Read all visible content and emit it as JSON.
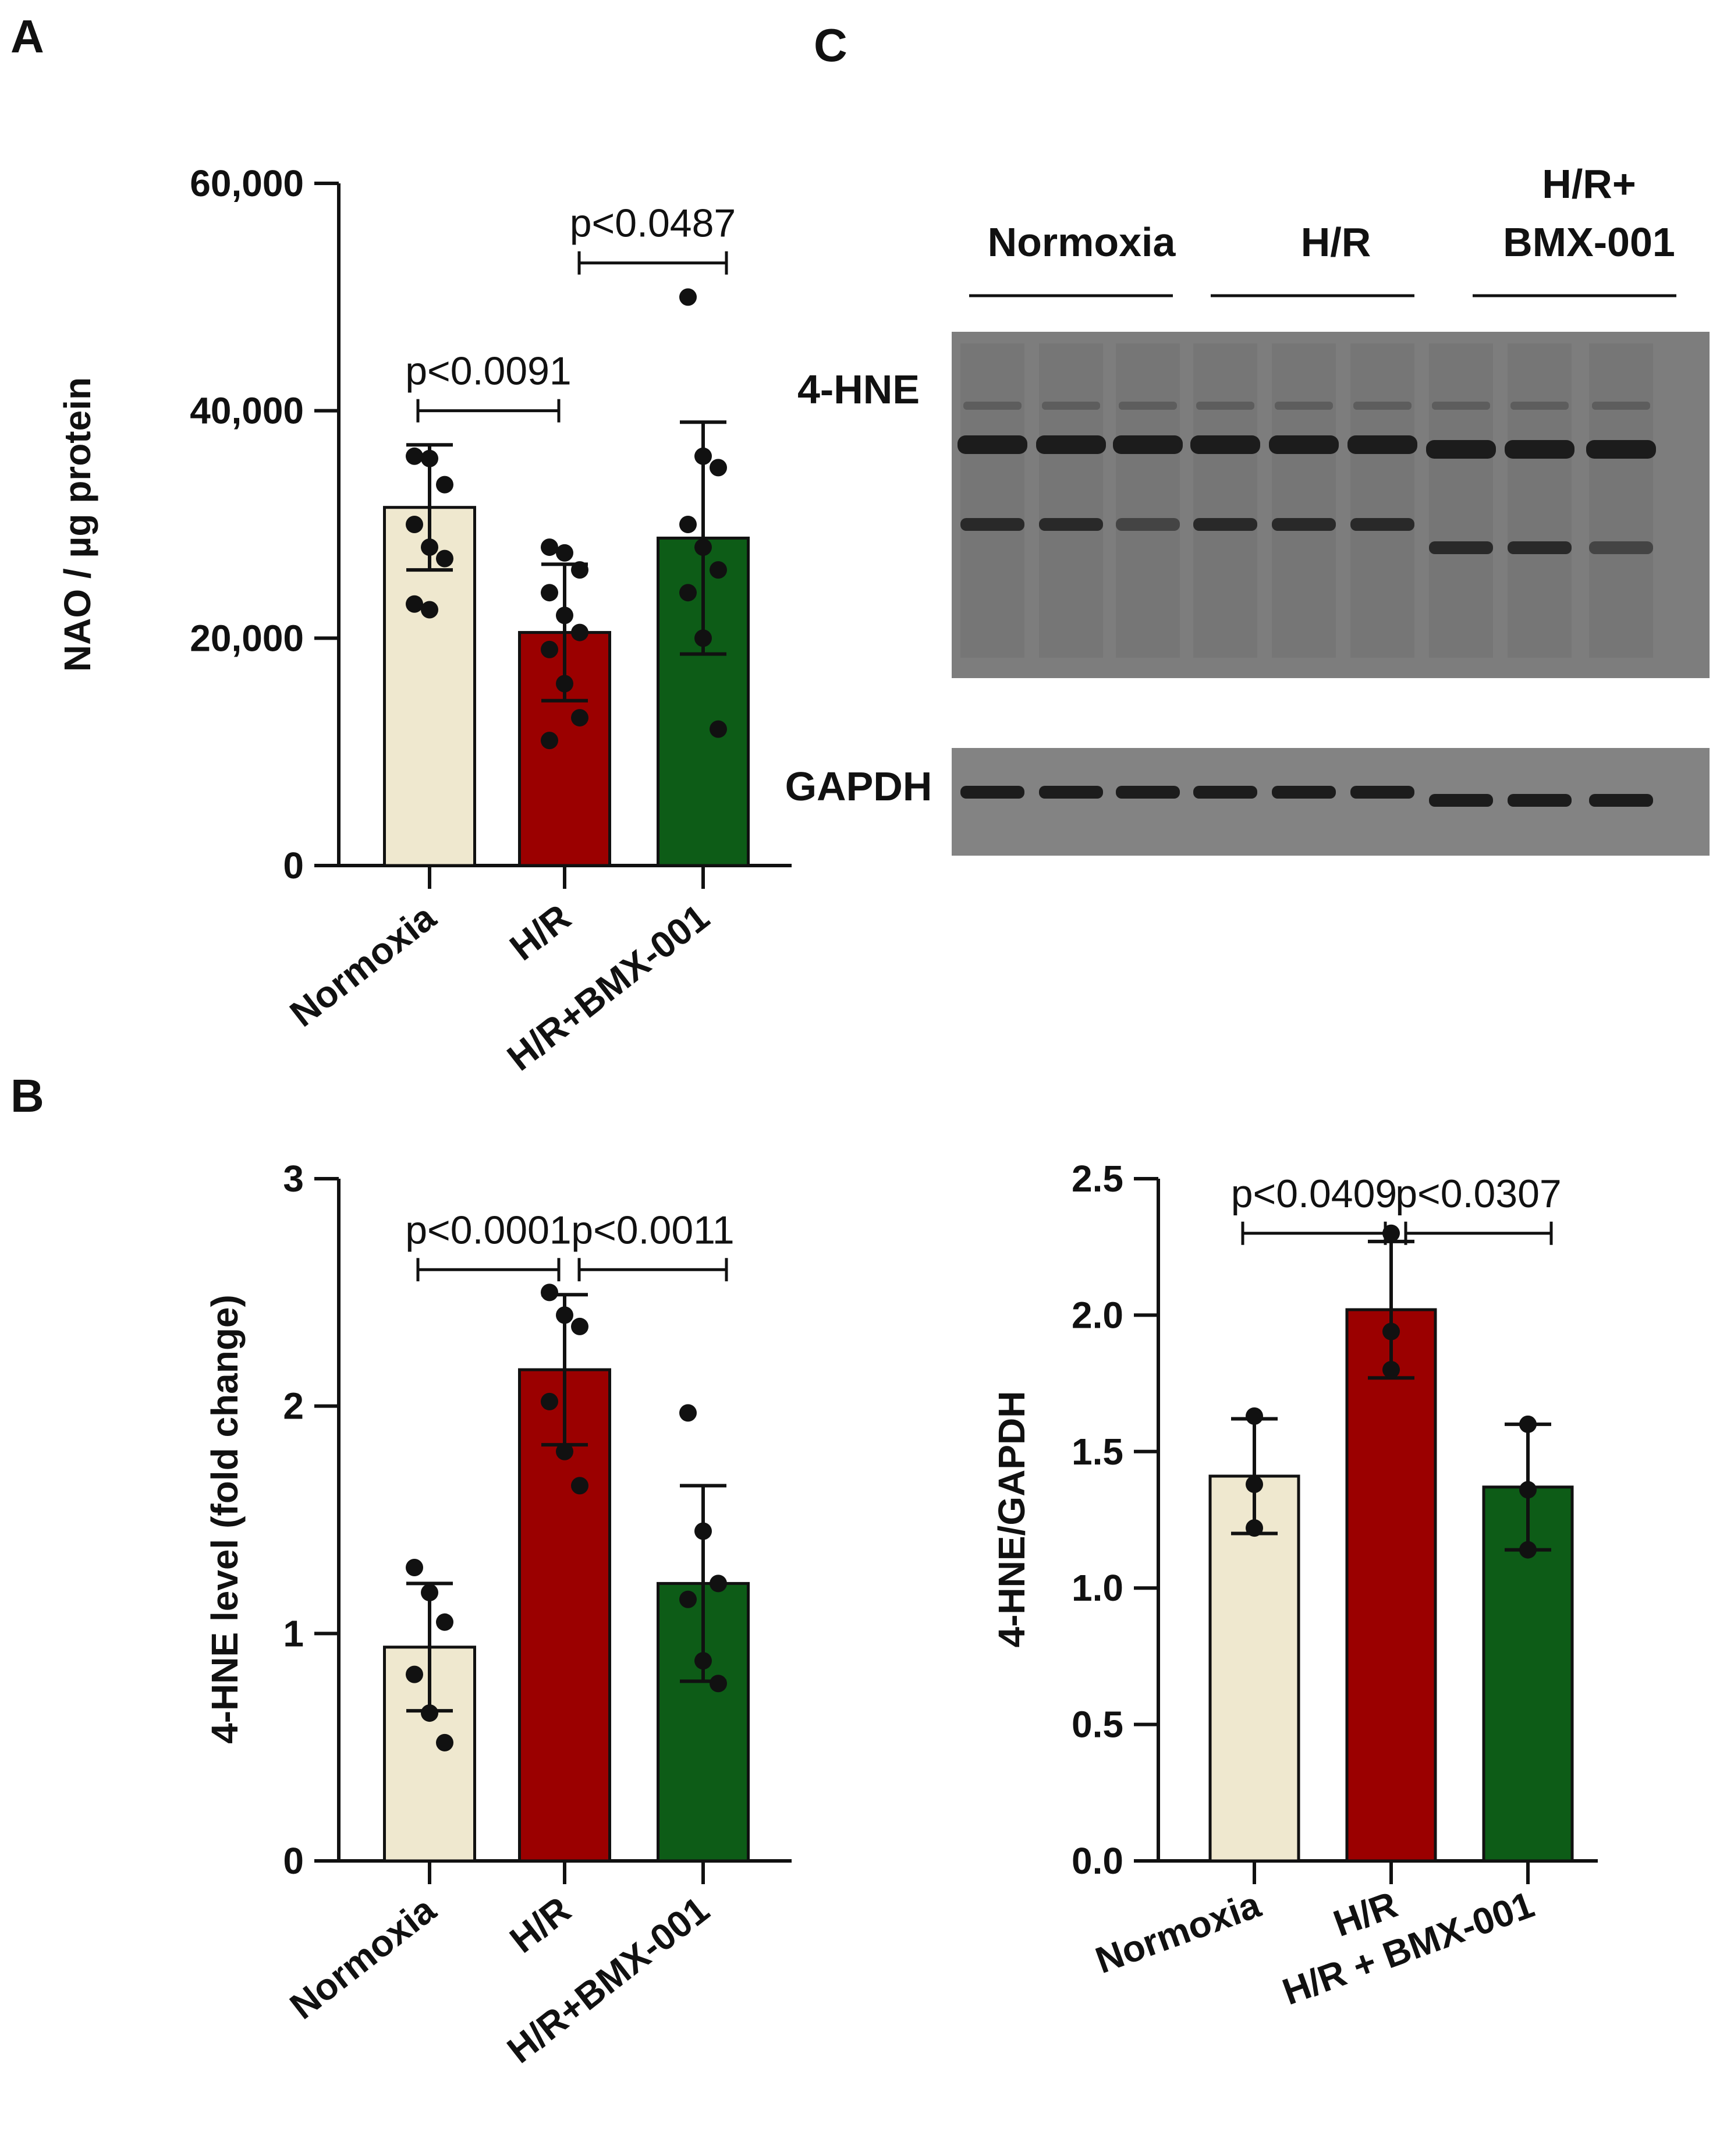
{
  "panel_letters": {
    "a": "A",
    "b": "B",
    "c": "C"
  },
  "colors": {
    "normoxia": "#efe8cf",
    "hr": "#9b0000",
    "bmx": "#0d5c17",
    "dots": "#111111",
    "blot_bg": "#7d7d7d",
    "blot_band": "#1c1c1c"
  },
  "blot": {
    "group_labels": [
      "Normoxia",
      "H/R",
      "H/R+",
      "BMX-001"
    ],
    "protein_labels": [
      "4-HNE",
      "GAPDH"
    ]
  },
  "chart_data": [
    {
      "id": "A",
      "type": "bar",
      "categories": [
        "Normoxia",
        "H/R",
        "H/R+BMX-001"
      ],
      "values": [
        31500,
        20500,
        28800
      ],
      "errors": [
        5500,
        6000,
        10200
      ],
      "points": [
        [
          36000,
          35800,
          33500,
          30000,
          28000,
          27000,
          23000,
          22500
        ],
        [
          28000,
          27500,
          26000,
          24000,
          22000,
          20500,
          19000,
          16000,
          13000,
          11000
        ],
        [
          50000,
          36000,
          35000,
          30000,
          28000,
          26000,
          24000,
          20000,
          12000
        ]
      ],
      "ylabel": "NAO / µg protein",
      "ylim": [
        0,
        60000
      ],
      "yticks": [
        0,
        20000,
        40000,
        60000
      ],
      "ytick_labels": [
        "0",
        "20,000",
        "40,000",
        "60,000"
      ],
      "comparisons": [
        {
          "from": 0,
          "to": 1,
          "y": 40000,
          "label": "p<0.0091"
        },
        {
          "from": 1,
          "to": 2,
          "y": 53000,
          "label": "p<0.0487"
        }
      ]
    },
    {
      "id": "B",
      "type": "bar",
      "categories": [
        "Normoxia",
        "H/R",
        "H/R+BMX-001"
      ],
      "values": [
        0.94,
        2.16,
        1.22
      ],
      "errors": [
        0.28,
        0.33,
        0.43
      ],
      "points": [
        [
          1.29,
          1.18,
          1.05,
          0.82,
          0.65,
          0.52
        ],
        [
          2.5,
          2.4,
          2.35,
          2.02,
          1.8,
          1.65
        ],
        [
          1.97,
          1.45,
          1.22,
          1.15,
          0.88,
          0.78
        ]
      ],
      "ylabel": "4-HNE level (fold change)",
      "ylim": [
        0,
        3
      ],
      "yticks": [
        0,
        1,
        2,
        3
      ],
      "ytick_labels": [
        "0",
        "1",
        "2",
        "3"
      ],
      "comparisons": [
        {
          "from": 0,
          "to": 1,
          "y": 2.6,
          "label": "p<0.0001"
        },
        {
          "from": 1,
          "to": 2,
          "y": 2.6,
          "label": "p<0.0011"
        }
      ]
    },
    {
      "id": "C",
      "type": "bar",
      "categories": [
        "Normoxia",
        "H/R",
        "H/R + BMX-001"
      ],
      "values": [
        1.41,
        2.02,
        1.37
      ],
      "errors": [
        0.21,
        0.25,
        0.23
      ],
      "points": [
        [
          1.63,
          1.38,
          1.22
        ],
        [
          2.3,
          1.94,
          1.8
        ],
        [
          1.6,
          1.36,
          1.14
        ]
      ],
      "ylabel": "4-HNE/GAPDH",
      "ylim": [
        0,
        2.5
      ],
      "yticks": [
        0,
        0.5,
        1,
        1.5,
        2,
        2.5
      ],
      "ytick_labels": [
        "0.0",
        "0.5",
        "1.0",
        "1.5",
        "2.0",
        "2.5"
      ],
      "comparisons": [
        {
          "from": 0,
          "to": 1,
          "y": 2.3,
          "label": "p<0.0409"
        },
        {
          "from": 1,
          "to": 2,
          "y": 2.3,
          "label": "p<0.0307"
        }
      ]
    }
  ]
}
